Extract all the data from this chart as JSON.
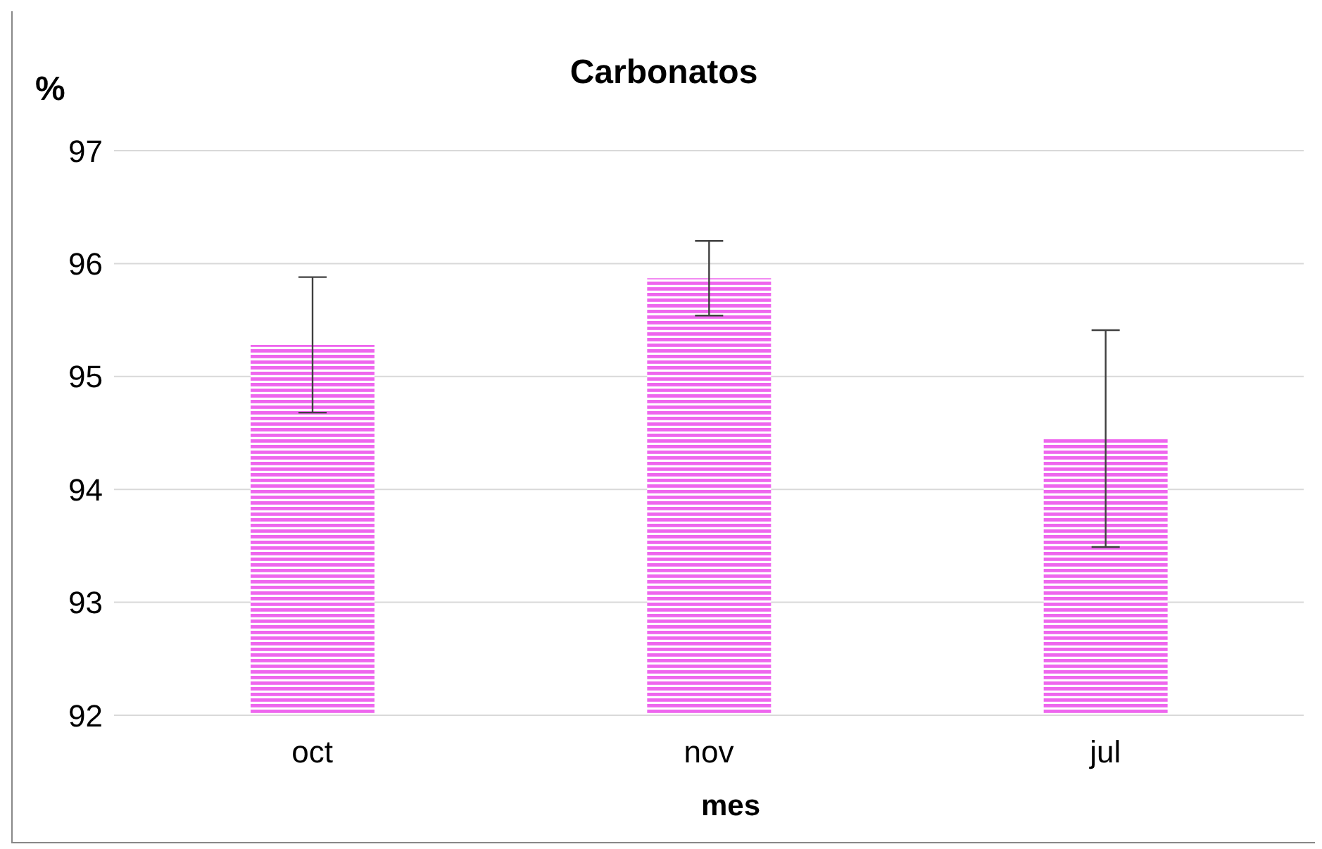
{
  "chart_data": {
    "type": "bar",
    "title": "Carbonatos",
    "xlabel": "mes",
    "ylabel": "%",
    "categories": [
      "oct",
      "nov",
      "jul"
    ],
    "values": [
      95.28,
      95.87,
      94.45
    ],
    "errors": [
      0.6,
      0.33,
      0.96
    ],
    "color": "#ee66ee",
    "ylim": [
      92,
      97
    ],
    "yticks": [
      92,
      93,
      94,
      95,
      96,
      97
    ],
    "grid": "y"
  }
}
